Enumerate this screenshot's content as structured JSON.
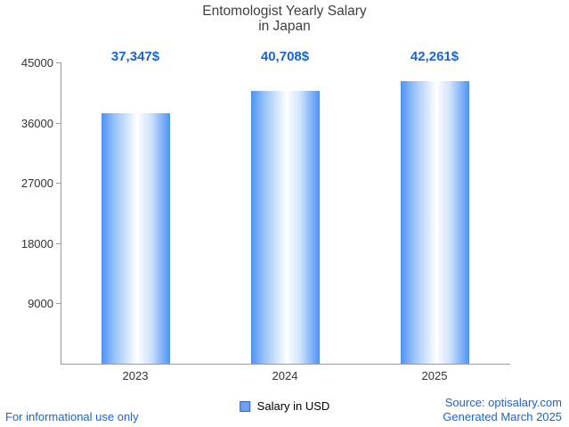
{
  "chart_data": {
    "type": "bar",
    "title": "Entomologist Yearly Salary",
    "subtitle": "in Japan",
    "categories": [
      "2023",
      "2024",
      "2025"
    ],
    "values": [
      37347,
      40708,
      42261
    ],
    "value_labels": [
      "37,347$",
      "40,708$",
      "42,261$"
    ],
    "legend": "Salary in USD",
    "xlabel": "",
    "ylabel": "",
    "ylim": [
      0,
      45000
    ],
    "yticks": [
      9000,
      18000,
      27000,
      36000,
      45000
    ],
    "grid": false,
    "legend_position": "bottom-center"
  },
  "footer": {
    "disclaimer": "For informational use only",
    "source": "Source: optisalary.com",
    "generated": "Generated March 2025"
  },
  "colors": {
    "accent_blue": "#1665d8",
    "bar_blue": "#4e92f6",
    "title_gray": "#3f3f3f",
    "axis_gray": "#9a9a9a"
  }
}
